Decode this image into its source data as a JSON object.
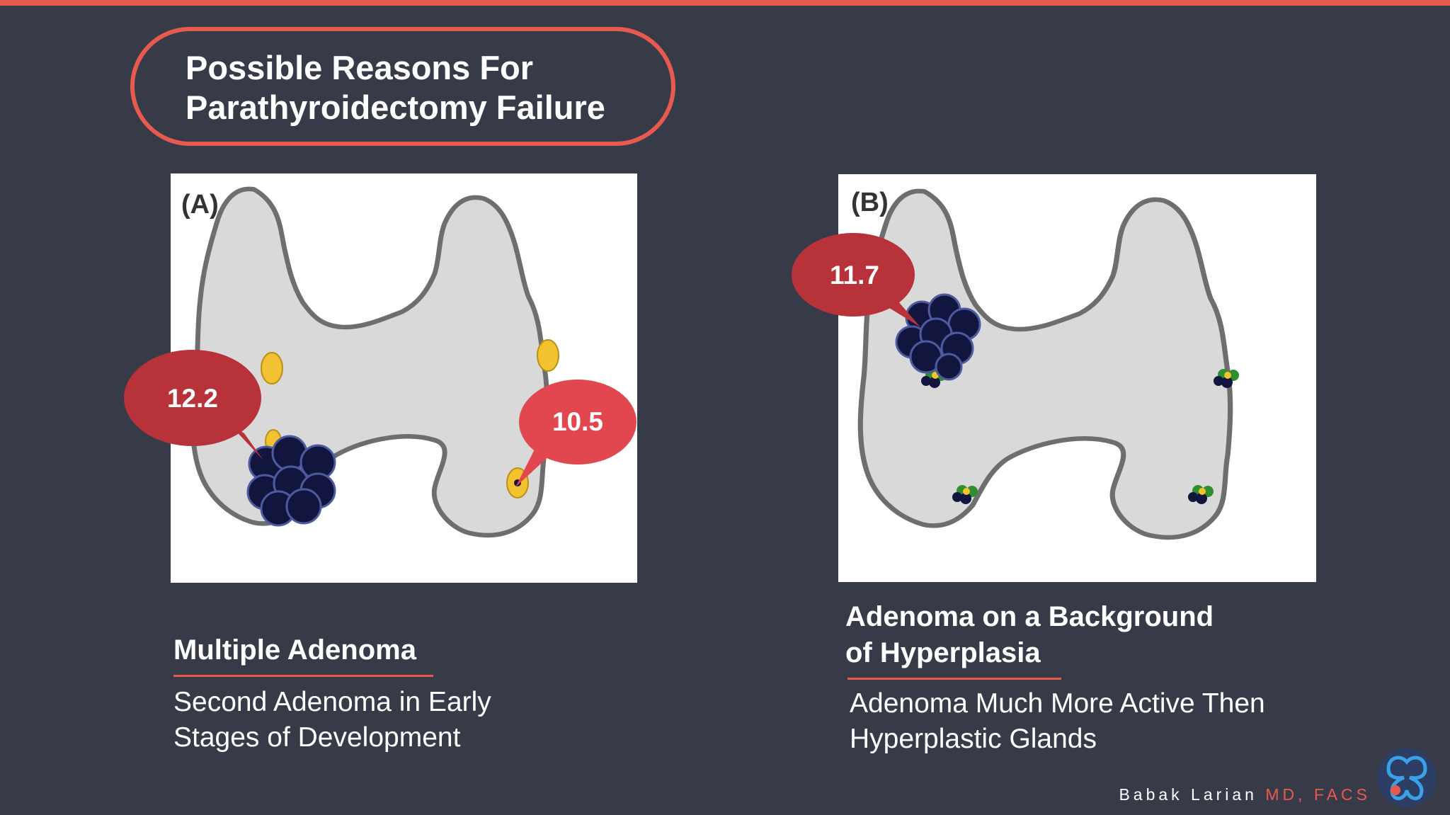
{
  "title": {
    "line1": "Possible Reasons For",
    "line2": "Parathyroidectomy Failure"
  },
  "panel_a": {
    "label": "(A)",
    "bubble_left": "12.2",
    "bubble_right": "10.5",
    "heading": "Multiple Adenoma",
    "description_line1": "Second Adenoma in Early",
    "description_line2": "Stages of Development"
  },
  "panel_b": {
    "label": "(B)",
    "bubble": "11.7",
    "heading_line1": "Adenoma on a Background",
    "heading_line2": "of Hyperplasia",
    "description_line1": "Adenoma Much More Active Then",
    "description_line2": "Hyperplastic Glands"
  },
  "signature": {
    "name": "Babak Larian",
    "credentials": "MD, FACS"
  },
  "colors": {
    "background": "#373b48",
    "accent": "#e85a50",
    "bubble_dark": "#b8323a",
    "bubble_light": "#e2474f",
    "thyroid_fill": "#d9d9d9",
    "thyroid_outline": "#6e6e6e",
    "gland_yellow": "#f2c230",
    "adenoma_navy": "#12163f",
    "hyperplasia_green": "#2f8f2f"
  },
  "icons": [
    "thyroid-gland-icon",
    "logo-icon"
  ]
}
